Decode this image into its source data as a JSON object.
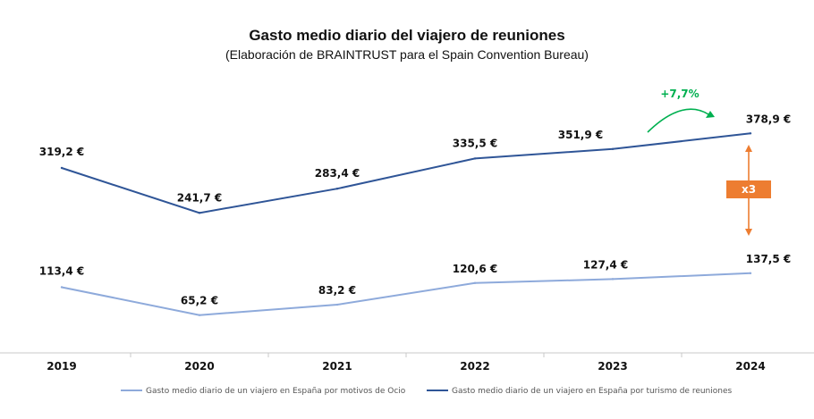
{
  "chart_data": {
    "type": "line",
    "title": "Gasto medio diario del viajero de reuniones",
    "subtitle": "(Elaboración de BRAINTRUST para el Spain Convention Bureau)",
    "categories": [
      "2019",
      "2020",
      "2021",
      "2022",
      "2023",
      "2024"
    ],
    "series": [
      {
        "name": "Gasto medio diario de un viajero en España por motivos de Ocio",
        "values": [
          113.4,
          65.2,
          83.2,
          120.6,
          127.4,
          137.5
        ],
        "labels": [
          "113,4 €",
          "65,2 €",
          "83,2 €",
          "120,6 €",
          "127,4 €",
          "137,5 €"
        ],
        "color": "#8eaadb"
      },
      {
        "name": "Gasto medio diario de un viajero en España por turismo de reuniones",
        "values": [
          319.2,
          241.7,
          283.4,
          335.5,
          351.9,
          378.9
        ],
        "labels": [
          "319,2 €",
          "241,7 €",
          "283,4 €",
          "335,5 €",
          "351,9 €",
          "378,9 €"
        ],
        "color": "#2f5597"
      }
    ],
    "annotations": {
      "growth": {
        "text": "+7,7%",
        "color": "#00b050"
      },
      "ratio": {
        "text": "x3",
        "color": "#ed7d31"
      }
    },
    "ylim": [
      0,
      420
    ],
    "grid": false,
    "legend": "bottom"
  }
}
